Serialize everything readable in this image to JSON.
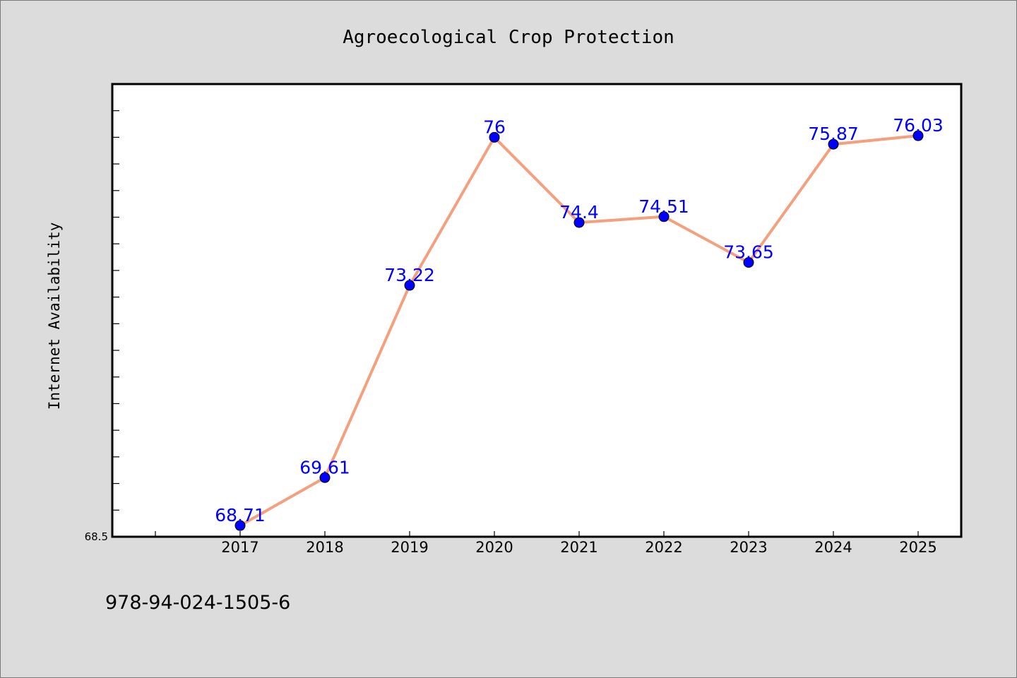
{
  "chart_data": {
    "type": "line",
    "title": "Agroecological Crop Protection",
    "xlabel": "",
    "ylabel": "Internet Availability",
    "categories": [
      "2017",
      "2018",
      "2019",
      "2020",
      "2021",
      "2022",
      "2023",
      "2024",
      "2025"
    ],
    "series": [
      {
        "values": [
          68.71,
          69.61,
          73.22,
          76,
          74.4,
          74.51,
          73.65,
          75.87,
          76.03
        ],
        "labels": [
          "68.71",
          "69.61",
          "73.22",
          "76",
          "74.4",
          "74.51",
          "73.65",
          "75.87",
          "76.03"
        ],
        "line_color": "#f4a07e",
        "marker_color": "#0000ff",
        "label_color": "#0000ff"
      }
    ],
    "ylim": [
      68.5,
      77
    ],
    "yticks_labeled": [
      "68.5"
    ],
    "grid": false,
    "legend": "none"
  },
  "footer": {
    "isbn": "978-94-024-1505-6"
  }
}
